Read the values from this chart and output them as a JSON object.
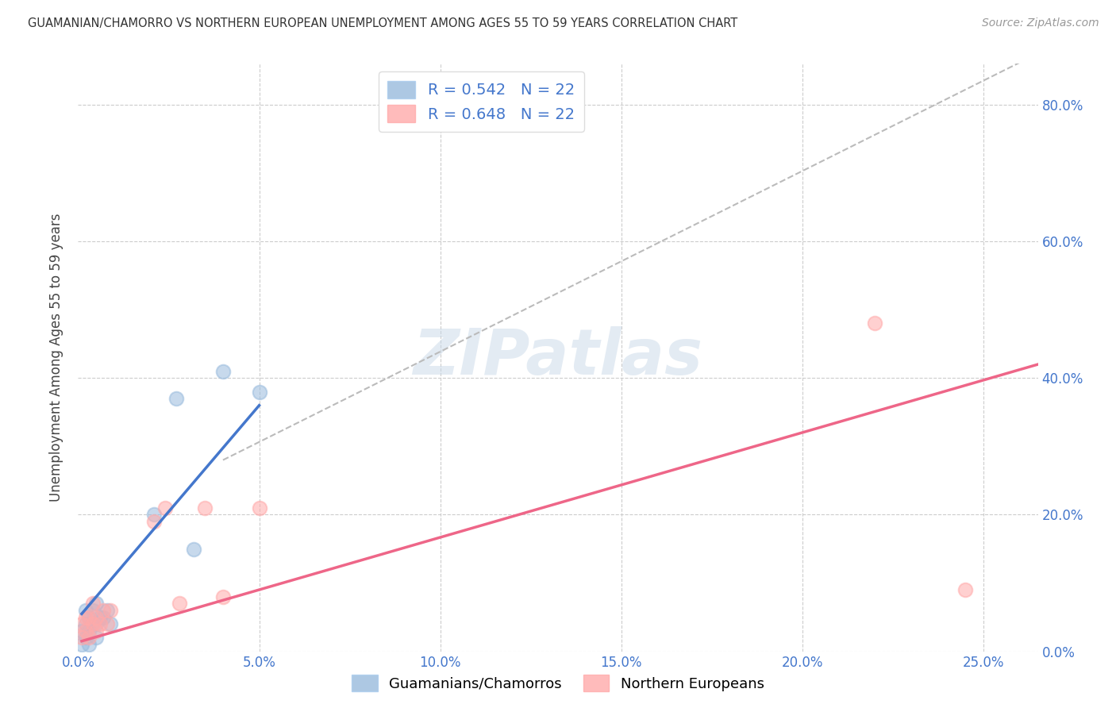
{
  "title": "GUAMANIAN/CHAMORRO VS NORTHERN EUROPEAN UNEMPLOYMENT AMONG AGES 55 TO 59 YEARS CORRELATION CHART",
  "source": "Source: ZipAtlas.com",
  "ylabel": "Unemployment Among Ages 55 to 59 years",
  "legend_label1": "Guamanians/Chamorros",
  "legend_label2": "Northern Europeans",
  "r1": "0.542",
  "n1": "22",
  "r2": "0.648",
  "n2": "22",
  "blue_scatter_color": "#99BBDD",
  "pink_scatter_color": "#FFAAAA",
  "blue_line_color": "#4477CC",
  "pink_line_color": "#EE6688",
  "dashed_line_color": "#BBBBBB",
  "text_color": "#4477CC",
  "watermark_color": "#C8D8E8",
  "xlim": [
    0.0,
    0.265
  ],
  "ylim": [
    0.0,
    0.86
  ],
  "xtick_vals": [
    0.0,
    0.05,
    0.1,
    0.15,
    0.2,
    0.25
  ],
  "xtick_labels": [
    "0.0%",
    "5.0%",
    "10.0%",
    "15.0%",
    "20.0%",
    "25.0%"
  ],
  "ytick_vals": [
    0.0,
    0.2,
    0.4,
    0.6,
    0.8
  ],
  "ytick_labels": [
    "0.0%",
    "20.0%",
    "40.0%",
    "60.0%",
    "80.0%"
  ],
  "guam_x": [
    0.001,
    0.001,
    0.002,
    0.002,
    0.002,
    0.003,
    0.003,
    0.003,
    0.004,
    0.004,
    0.005,
    0.005,
    0.005,
    0.006,
    0.007,
    0.008,
    0.009,
    0.021,
    0.027,
    0.032,
    0.04,
    0.05
  ],
  "guam_y": [
    0.01,
    0.03,
    0.02,
    0.04,
    0.06,
    0.01,
    0.03,
    0.05,
    0.04,
    0.06,
    0.02,
    0.04,
    0.07,
    0.05,
    0.05,
    0.06,
    0.04,
    0.2,
    0.37,
    0.15,
    0.41,
    0.38
  ],
  "ne_x": [
    0.001,
    0.001,
    0.002,
    0.002,
    0.003,
    0.003,
    0.004,
    0.004,
    0.005,
    0.005,
    0.006,
    0.007,
    0.008,
    0.009,
    0.021,
    0.024,
    0.028,
    0.035,
    0.04,
    0.05,
    0.22,
    0.245
  ],
  "ne_y": [
    0.02,
    0.04,
    0.03,
    0.05,
    0.02,
    0.05,
    0.04,
    0.07,
    0.03,
    0.05,
    0.04,
    0.06,
    0.04,
    0.06,
    0.19,
    0.21,
    0.07,
    0.21,
    0.08,
    0.21,
    0.48,
    0.09
  ],
  "blue_line_x": [
    0.001,
    0.05
  ],
  "blue_line_y": [
    0.055,
    0.36
  ],
  "pink_line_x": [
    0.001,
    0.265
  ],
  "pink_line_y": [
    0.015,
    0.42
  ],
  "dash_line_x": [
    0.04,
    0.265
  ],
  "dash_line_y": [
    0.28,
    0.875
  ]
}
